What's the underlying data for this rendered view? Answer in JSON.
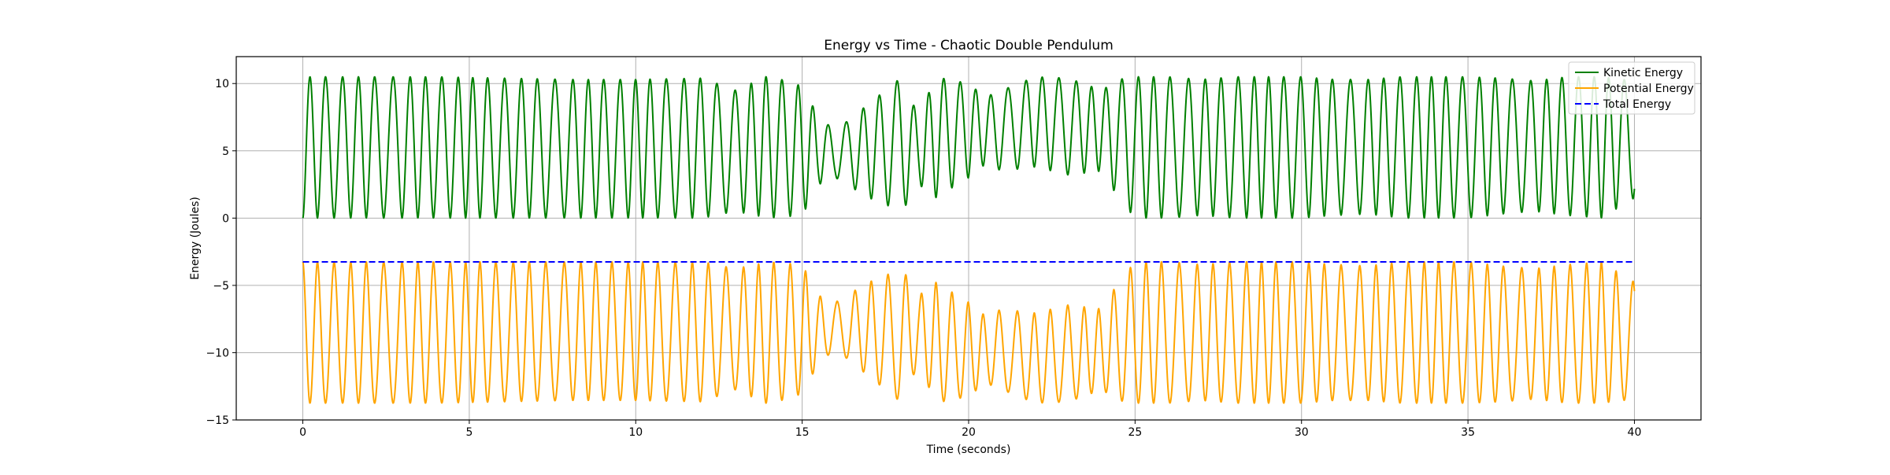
{
  "chart_data": {
    "type": "line",
    "title": "Energy vs Time - Chaotic Double Pendulum",
    "xlabel": "Time (seconds)",
    "ylabel": "Energy (Joules)",
    "xlim": [
      -2,
      42
    ],
    "ylim": [
      -15,
      12
    ],
    "xticks": [
      0,
      5,
      10,
      15,
      20,
      25,
      30,
      35,
      40
    ],
    "yticks": [
      -15,
      -10,
      -5,
      0,
      5,
      10
    ],
    "grid": true,
    "legend_position": "top-right",
    "total_energy": -3.25,
    "kinetic_amplitude_envelope": {
      "t": [
        0,
        2,
        4,
        6,
        8,
        10,
        12,
        13,
        14,
        15,
        15.5,
        16,
        17,
        18,
        18.5,
        19,
        20,
        20.5,
        21,
        22,
        23,
        24,
        24.5,
        25,
        26,
        27,
        28,
        29,
        30,
        31,
        32,
        33,
        34,
        35,
        36,
        37,
        38,
        39,
        40
      ],
      "peak": [
        10.5,
        10.5,
        10.5,
        10.4,
        10.3,
        10.3,
        10.4,
        9.5,
        10.6,
        9.8,
        7.5,
        6.5,
        8.5,
        10.5,
        7.5,
        10.5,
        10,
        9,
        9.5,
        10.5,
        10.4,
        9.5,
        10.3,
        10.5,
        10.5,
        10.3,
        10.5,
        10.5,
        10.5,
        10.3,
        10.3,
        10.5,
        10.5,
        10.5,
        10.4,
        10.2,
        10.5,
        10.5,
        10.2
      ],
      "trough": [
        0,
        0,
        0,
        0,
        0,
        0,
        0,
        0.5,
        0,
        0.2,
        2.5,
        3,
        1.5,
        0.5,
        2.5,
        1.5,
        3,
        4,
        3.5,
        3.8,
        3.2,
        3.5,
        1.5,
        0,
        0,
        0.2,
        0,
        0,
        0,
        0.2,
        0.3,
        0,
        0,
        0,
        0.3,
        0.5,
        0.2,
        0,
        1.5
      ]
    },
    "series": [
      {
        "name": "Kinetic Energy",
        "color": "#008000",
        "style": "solid"
      },
      {
        "name": "Potential Energy",
        "color": "#ffa500",
        "style": "solid"
      },
      {
        "name": "Total Energy",
        "color": "#0000ff",
        "style": "dashed"
      }
    ]
  }
}
